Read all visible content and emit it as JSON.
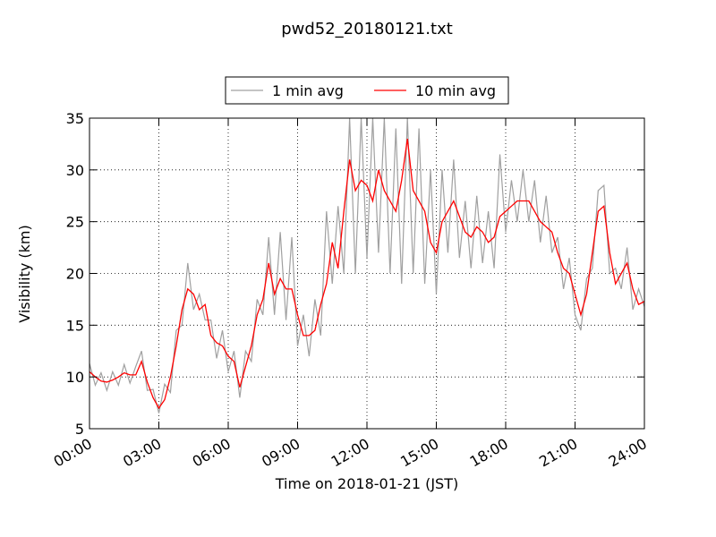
{
  "chart_data": {
    "type": "line",
    "title": "pwd52_20180121.txt",
    "x_label": "Time on 2018-01-21 (JST)",
    "y_label": "Visibility (km)",
    "x": [
      0,
      0.25,
      0.5,
      0.75,
      1,
      1.25,
      1.5,
      1.75,
      2,
      2.25,
      2.5,
      2.75,
      3,
      3.25,
      3.5,
      3.75,
      4,
      4.25,
      4.5,
      4.75,
      5,
      5.25,
      5.5,
      5.75,
      6,
      6.25,
      6.5,
      6.75,
      7,
      7.25,
      7.5,
      7.75,
      8,
      8.25,
      8.5,
      8.75,
      9,
      9.25,
      9.5,
      9.75,
      10,
      10.25,
      10.5,
      10.75,
      11,
      11.25,
      11.5,
      11.75,
      12,
      12.25,
      12.5,
      12.75,
      13,
      13.25,
      13.5,
      13.75,
      14,
      14.25,
      14.5,
      14.75,
      15,
      15.25,
      15.5,
      15.75,
      16,
      16.25,
      16.5,
      16.75,
      17,
      17.25,
      17.5,
      17.75,
      18,
      18.25,
      18.5,
      18.75,
      19,
      19.25,
      19.5,
      19.75,
      20,
      20.25,
      20.5,
      20.75,
      21,
      21.25,
      21.5,
      21.75,
      22,
      22.25,
      22.5,
      22.75,
      23,
      23.25,
      23.5,
      23.75,
      24
    ],
    "series": [
      {
        "name": "1 min avg",
        "color": "#a0a0a0",
        "values": [
          11.3,
          9.2,
          10.4,
          8.7,
          10.5,
          9.2,
          11.2,
          9.4,
          11,
          12.5,
          8.7,
          8.8,
          6.5,
          9.3,
          8.5,
          14.5,
          15,
          21,
          16.5,
          18,
          15.5,
          15.5,
          11.8,
          14.5,
          10.5,
          12.5,
          8,
          12.5,
          11.5,
          17.5,
          16,
          23.5,
          16,
          24,
          15.5,
          23.5,
          13,
          16,
          12,
          17.5,
          14,
          26,
          19,
          26.5,
          20,
          35,
          20,
          35,
          21.5,
          35,
          22,
          35,
          20,
          34,
          19,
          35,
          20,
          34,
          19,
          30,
          18,
          30,
          22,
          31,
          21.5,
          27,
          20.5,
          27.5,
          21,
          26,
          20.5,
          31.5,
          24,
          29,
          25,
          30,
          25,
          29,
          23,
          27.5,
          22,
          23.5,
          18.5,
          21.5,
          16,
          14.5,
          19.5,
          20.5,
          28,
          28.5,
          20,
          20.5,
          18.5,
          22.5,
          16.5,
          18.5,
          16.8
        ]
      },
      {
        "name": "10 min avg",
        "color": "#ff0000",
        "values": [
          10.5,
          10,
          9.6,
          9.5,
          9.7,
          10,
          10.4,
          10.2,
          10.2,
          11.5,
          9.5,
          8,
          7,
          7.8,
          10,
          13,
          16.5,
          18.5,
          18,
          16.5,
          17,
          14,
          13.3,
          13,
          12,
          11.5,
          9,
          11,
          13,
          16,
          17.5,
          21,
          18,
          19.5,
          18.5,
          18.5,
          16,
          14,
          14,
          14.5,
          17,
          19,
          23,
          20.5,
          26,
          31,
          28,
          29,
          28.5,
          27,
          30,
          28,
          27,
          26,
          29,
          33,
          28,
          27,
          26,
          23,
          22,
          25,
          26,
          27,
          25.5,
          24,
          23.5,
          24.5,
          24,
          23,
          23.5,
          25.5,
          26,
          26.5,
          27,
          27,
          27,
          26,
          25,
          24.5,
          24,
          22,
          20.5,
          20,
          18,
          16,
          18,
          22,
          26,
          26.5,
          22,
          19,
          20,
          21,
          18.5,
          17,
          17.3
        ]
      }
    ],
    "xlim": [
      0,
      24
    ],
    "xticks": [
      {
        "value": 0,
        "label": "00:00"
      },
      {
        "value": 3,
        "label": "03:00"
      },
      {
        "value": 6,
        "label": "06:00"
      },
      {
        "value": 9,
        "label": "09:00"
      },
      {
        "value": 12,
        "label": "12:00"
      },
      {
        "value": 15,
        "label": "15:00"
      },
      {
        "value": 18,
        "label": "18:00"
      },
      {
        "value": 21,
        "label": "21:00"
      },
      {
        "value": 24,
        "label": "24:00"
      }
    ],
    "ylim": [
      5,
      35
    ],
    "yticks": [
      5,
      10,
      15,
      20,
      25,
      30,
      35
    ],
    "grid": true,
    "legend": "top"
  }
}
